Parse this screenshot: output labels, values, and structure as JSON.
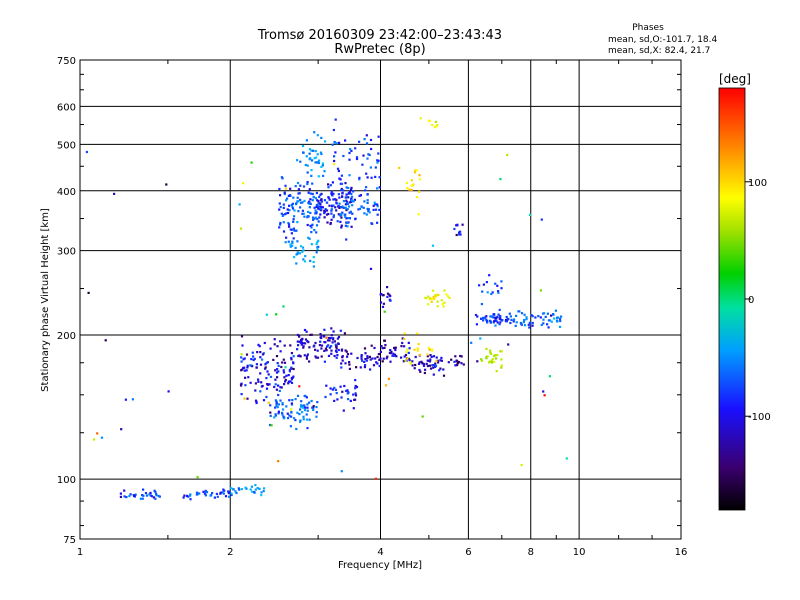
{
  "chart_data": {
    "type": "scatter",
    "title": "Tromsø 20160309 23:42:00–23:43:43",
    "subtitle": "RwPretec (8p)",
    "info": {
      "heading": "Phases",
      "line1": "mean, sd,O:-101.7, 18.4",
      "line2": "mean, sd,X:  82.4, 21.7"
    },
    "xlabel": "Frequency [MHz]",
    "ylabel": "Stationary phase Virtual Height [km]",
    "x_scale": "log",
    "y_scale": "log",
    "xlim": [
      1,
      16
    ],
    "ylim": [
      75,
      750
    ],
    "x_ticks": [
      1,
      2,
      4,
      6,
      8,
      10,
      16
    ],
    "x_tick_labels": [
      "1",
      "2",
      "4",
      "6",
      "8",
      "10",
      "16"
    ],
    "y_ticks": [
      75,
      100,
      200,
      300,
      400,
      500,
      600,
      750
    ],
    "y_tick_labels": [
      "75",
      "100",
      "200",
      "300",
      "400",
      "500",
      "600",
      "750"
    ],
    "grid": true,
    "colorbar": {
      "label": "[deg]",
      "range": [
        -180,
        180
      ],
      "ticks": [
        100,
        0,
        -100
      ],
      "tick_labels": [
        "100",
        "0",
        "-100"
      ]
    },
    "clusters": [
      {
        "x": [
          1.2,
          1.45
        ],
        "y": [
          93,
          2
        ],
        "n": 30,
        "phase": -105
      },
      {
        "x": [
          1.6,
          2.0
        ],
        "y": [
          93,
          2
        ],
        "n": 35,
        "phase": -105
      },
      {
        "x": [
          2.0,
          2.35
        ],
        "y": [
          95,
          3
        ],
        "n": 25,
        "phase": -80
      },
      {
        "x": [
          2.1,
          2.7
        ],
        "y": [
          170,
          25
        ],
        "n": 130,
        "phase": -125
      },
      {
        "x": [
          2.4,
          3.0
        ],
        "y": [
          140,
          10
        ],
        "n": 80,
        "phase": -95
      },
      {
        "x": [
          2.5,
          3.0
        ],
        "y": [
          360,
          60
        ],
        "n": 130,
        "phase": -100
      },
      {
        "x": [
          2.7,
          3.1
        ],
        "y": [
          470,
          50
        ],
        "n": 40,
        "phase": -80
      },
      {
        "x": [
          2.6,
          3.0
        ],
        "y": [
          300,
          20
        ],
        "n": 30,
        "phase": -70
      },
      {
        "x": [
          2.7,
          3.4
        ],
        "y": [
          190,
          15
        ],
        "n": 100,
        "phase": -130
      },
      {
        "x": [
          3.0,
          3.5
        ],
        "y": [
          380,
          40
        ],
        "n": 110,
        "phase": -120
      },
      {
        "x": [
          3.2,
          4.0
        ],
        "y": [
          450,
          110
        ],
        "n": 60,
        "phase": -105
      },
      {
        "x": [
          3.3,
          4.0
        ],
        "y": [
          365,
          30
        ],
        "n": 60,
        "phase": -95
      },
      {
        "x": [
          3.4,
          4.0
        ],
        "y": [
          180,
          10
        ],
        "n": 40,
        "phase": -130
      },
      {
        "x": [
          3.1,
          3.6
        ],
        "y": [
          150,
          10
        ],
        "n": 30,
        "phase": -120
      },
      {
        "x": [
          4.0,
          4.2
        ],
        "y": [
          240,
          10
        ],
        "n": 15,
        "phase": -120
      },
      {
        "x": [
          4.0,
          4.6
        ],
        "y": [
          185,
          10
        ],
        "n": 40,
        "phase": -135
      },
      {
        "x": [
          4.6,
          5.9
        ],
        "y": [
          175,
          8
        ],
        "n": 60,
        "phase": -135
      },
      {
        "x": [
          4.9,
          5.5
        ],
        "y": [
          240,
          10
        ],
        "n": 25,
        "phase": 95
      },
      {
        "x": [
          4.5,
          4.8
        ],
        "y": [
          420,
          30
        ],
        "n": 15,
        "phase": 110
      },
      {
        "x": [
          4.8,
          5.2
        ],
        "y": [
          560,
          25
        ],
        "n": 8,
        "phase": 90
      },
      {
        "x": [
          4.4,
          5.2
        ],
        "y": [
          185,
          15
        ],
        "n": 20,
        "phase": 110
      },
      {
        "x": [
          5.6,
          5.95
        ],
        "y": [
          330,
          10
        ],
        "n": 10,
        "phase": -120
      },
      {
        "x": [
          6.2,
          7.2
        ],
        "y": [
          215,
          8
        ],
        "n": 50,
        "phase": -110
      },
      {
        "x": [
          7.2,
          9.2
        ],
        "y": [
          215,
          8
        ],
        "n": 60,
        "phase": -95
      },
      {
        "x": [
          6.3,
          7.0
        ],
        "y": [
          180,
          10
        ],
        "n": 25,
        "phase": 60
      },
      {
        "x": [
          6.3,
          7.0
        ],
        "y": [
          250,
          15
        ],
        "n": 15,
        "phase": -105
      },
      {
        "x": [
          1.0,
          10.0
        ],
        "y": [
          100,
          500
        ],
        "n": 60,
        "phase": 0
      }
    ]
  }
}
